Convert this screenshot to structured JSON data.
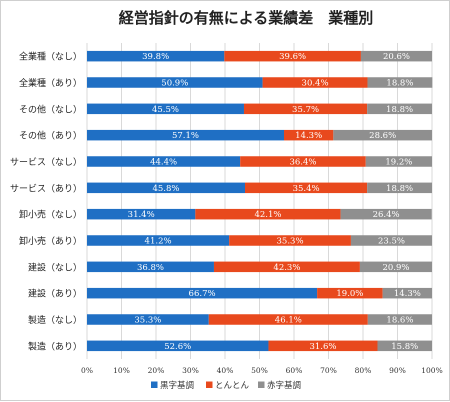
{
  "chart_data": {
    "type": "bar",
    "orientation": "horizontal",
    "stacked": "percent",
    "title": "経営指針の有無による業績差　業種別",
    "xlabel": "",
    "ylabel": "",
    "xlim": [
      0,
      100
    ],
    "x_ticks": [
      "0%",
      "10%",
      "20%",
      "30%",
      "40%",
      "50%",
      "60%",
      "70%",
      "80%",
      "90%",
      "100%"
    ],
    "grid": true,
    "legend_position": "bottom",
    "categories": [
      "全業種（なし）",
      "全業種（あり）",
      "その他（なし）",
      "その他（あり）",
      "サービス（なし）",
      "サービス（あり）",
      "卸小売（なし）",
      "卸小売（あり）",
      "建設（なし）",
      "建設（あり）",
      "製造（なし）",
      "製造（あり）"
    ],
    "series": [
      {
        "name": "黒字基調",
        "color": "#1f6fc4",
        "values": [
          39.8,
          50.9,
          45.5,
          57.1,
          44.4,
          45.8,
          31.4,
          41.2,
          36.8,
          66.7,
          35.3,
          52.6
        ],
        "labels": [
          "39.8%",
          "50.9%",
          "45.5%",
          "57.1%",
          "44.4%",
          "45.8%",
          "31.4%",
          "41.2%",
          "36.8%",
          "66.7%",
          "35.3%",
          "52.6%"
        ]
      },
      {
        "name": "とんとん",
        "color": "#e8491d",
        "values": [
          39.6,
          30.4,
          35.7,
          14.3,
          36.4,
          35.4,
          42.1,
          35.3,
          42.3,
          19.0,
          46.1,
          31.6
        ],
        "labels": [
          "39.6%",
          "30.4%",
          "35.7%",
          "14.3%",
          "36.4%",
          "35.4%",
          "42.1%",
          "35.3%",
          "42.3%",
          "19.0%",
          "46.1%",
          "31.6%"
        ]
      },
      {
        "name": "赤字基調",
        "color": "#8f8f8f",
        "values": [
          20.6,
          18.8,
          18.8,
          28.6,
          19.2,
          18.8,
          26.4,
          23.5,
          20.9,
          14.3,
          18.6,
          15.8
        ],
        "labels": [
          "20.6%",
          "18.8%",
          "18.8%",
          "28.6%",
          "19.2%",
          "18.8%",
          "26.4%",
          "23.5%",
          "20.9%",
          "14.3%",
          "18.6%",
          "15.8%"
        ]
      }
    ]
  }
}
